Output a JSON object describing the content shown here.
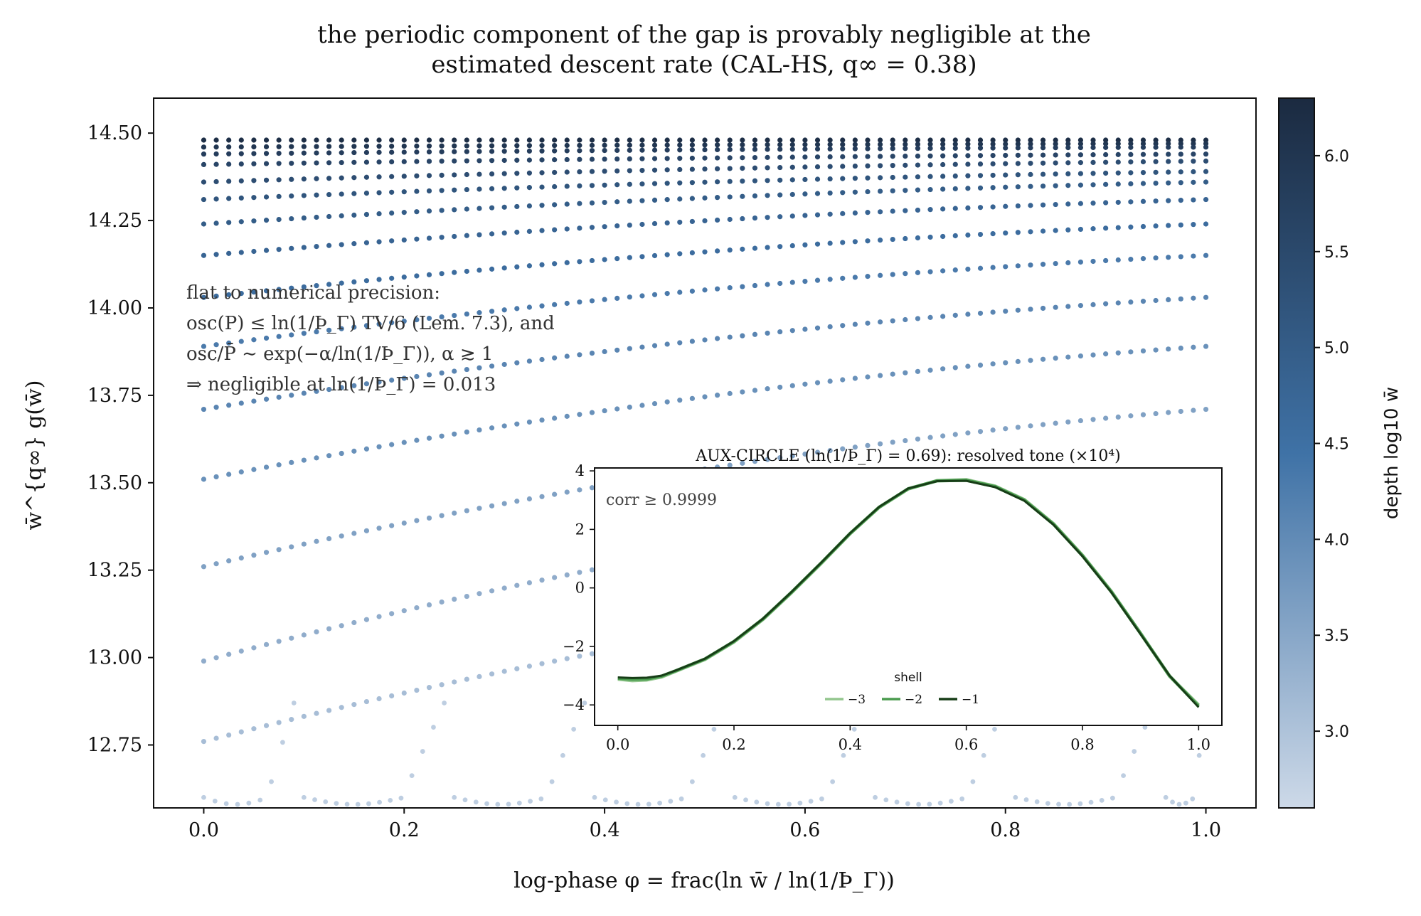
{
  "chart_data": [
    {
      "type": "scatter",
      "title": "the periodic component of the gap is provably negligible at the estimated descent rate (CAL-HS, q∞ = 0.38)",
      "title_lines": [
        "the periodic component of the gap is provably negligible at the",
        "estimated descent rate (CAL-HS, q∞ = 0.38)"
      ],
      "xlabel": "log-phase φ = frac(ln w̄ / ln(1/Þ_Γ))",
      "ylabel": "w̄^{q∞} g(w̄)",
      "xlim": [
        -0.05,
        1.05
      ],
      "ylim": [
        12.57,
        14.6
      ],
      "x_ticks": [
        "0.0",
        "0.2",
        "0.4",
        "0.6",
        "0.8",
        "1.0"
      ],
      "x_tick_values": [
        0.0,
        0.2,
        0.4,
        0.6,
        0.8,
        1.0
      ],
      "y_ticks": [
        "12.75",
        "13.00",
        "13.25",
        "13.50",
        "13.75",
        "14.00",
        "14.25",
        "14.50"
      ],
      "y_tick_values": [
        12.75,
        13.0,
        13.25,
        13.5,
        13.75,
        14.0,
        14.25,
        14.5
      ],
      "grid": false,
      "legend": "none",
      "series_start_values": [
        14.48,
        14.46,
        14.44,
        14.41,
        14.36,
        14.31,
        14.24,
        14.15,
        14.03,
        13.89,
        13.71,
        13.51,
        13.26,
        12.99,
        12.76
      ],
      "series_end_values": [
        14.48,
        14.47,
        14.46,
        14.44,
        14.42,
        14.39,
        14.36,
        14.31,
        14.24,
        14.15,
        14.03,
        13.89,
        13.71,
        13.51,
        13.26
      ],
      "series_depth": [
        6.2,
        6.0,
        5.8,
        5.6,
        5.4,
        5.2,
        5.0,
        4.8,
        4.6,
        4.3,
        4.1,
        3.9,
        3.6,
        3.4,
        3.1
      ],
      "bottom_arc_starts": [
        0.0,
        0.1,
        0.25,
        0.39,
        0.53,
        0.67,
        0.81,
        0.96
      ],
      "bottom_arc_value": 12.6,
      "bottom_arc_depth": 2.8,
      "annotation_lines": [
        "flat to numerical precision:",
        "osc(P) ≤ ln(1/Þ_Γ) TV/6 (Lem. 7.3), and",
        "osc/P̄ ∼ exp(−α/ln(1/Þ_Γ)), α ≳ 1",
        "⇒ negligible at ln(1/Þ_Γ) = 0.013"
      ],
      "colorbar": {
        "label": "depth log10 w̄",
        "range": [
          2.6,
          6.3
        ],
        "ticks": [
          "3.0",
          "3.5",
          "4.0",
          "4.5",
          "5.0",
          "5.5",
          "6.0"
        ],
        "tick_values": [
          3.0,
          3.5,
          4.0,
          4.5,
          5.0,
          5.5,
          6.0
        ],
        "color_light": "#cdd9e8",
        "color_mid": "#3f72a6",
        "color_dark": "#1b2a40"
      }
    },
    {
      "type": "line",
      "title": "AUX-CIRCLE (ln(1/Þ_Γ) = 0.69): resolved tone (×10⁴)",
      "xlim": [
        -0.04,
        1.04
      ],
      "ylim": [
        -4.7,
        4.1
      ],
      "x_ticks": [
        "0.0",
        "0.2",
        "0.4",
        "0.6",
        "0.8",
        "1.0"
      ],
      "x_tick_values": [
        0.0,
        0.2,
        0.4,
        0.6,
        0.8,
        1.0
      ],
      "y_ticks": [
        "−4",
        "−2",
        "0",
        "2",
        "4"
      ],
      "y_tick_values": [
        -4,
        -2,
        0,
        2,
        4
      ],
      "note": "corr ≥ 0.9999",
      "legend_title": "shell",
      "legend": "bottom-center",
      "x": [
        0.0,
        0.025,
        0.05,
        0.075,
        0.1,
        0.15,
        0.2,
        0.25,
        0.3,
        0.35,
        0.4,
        0.45,
        0.5,
        0.55,
        0.6,
        0.65,
        0.7,
        0.75,
        0.8,
        0.85,
        0.9,
        0.95,
        1.0
      ],
      "series": [
        {
          "name": "−3",
          "color": "#93c68e",
          "values": [
            -3.12,
            -3.17,
            -3.15,
            -3.05,
            -2.85,
            -2.45,
            -1.85,
            -1.08,
            -0.15,
            0.83,
            1.85,
            2.75,
            3.38,
            3.67,
            3.7,
            3.48,
            3.02,
            2.2,
            1.12,
            -0.12,
            -1.55,
            -3.02,
            -4.0
          ]
        },
        {
          "name": "−2",
          "color": "#4a9b4e",
          "values": [
            -3.09,
            -3.12,
            -3.11,
            -3.02,
            -2.83,
            -2.43,
            -1.83,
            -1.06,
            -0.13,
            0.85,
            1.86,
            2.76,
            3.39,
            3.66,
            3.68,
            3.46,
            3.0,
            2.18,
            1.1,
            -0.14,
            -1.56,
            -3.01,
            -4.04
          ]
        },
        {
          "name": "−1",
          "color": "#173d17",
          "values": [
            -3.06,
            -3.08,
            -3.07,
            -3.0,
            -2.82,
            -2.42,
            -1.82,
            -1.05,
            -0.12,
            0.86,
            1.87,
            2.77,
            3.4,
            3.65,
            3.66,
            3.44,
            2.98,
            2.16,
            1.08,
            -0.16,
            -1.58,
            -3.0,
            -4.08
          ]
        }
      ]
    }
  ]
}
